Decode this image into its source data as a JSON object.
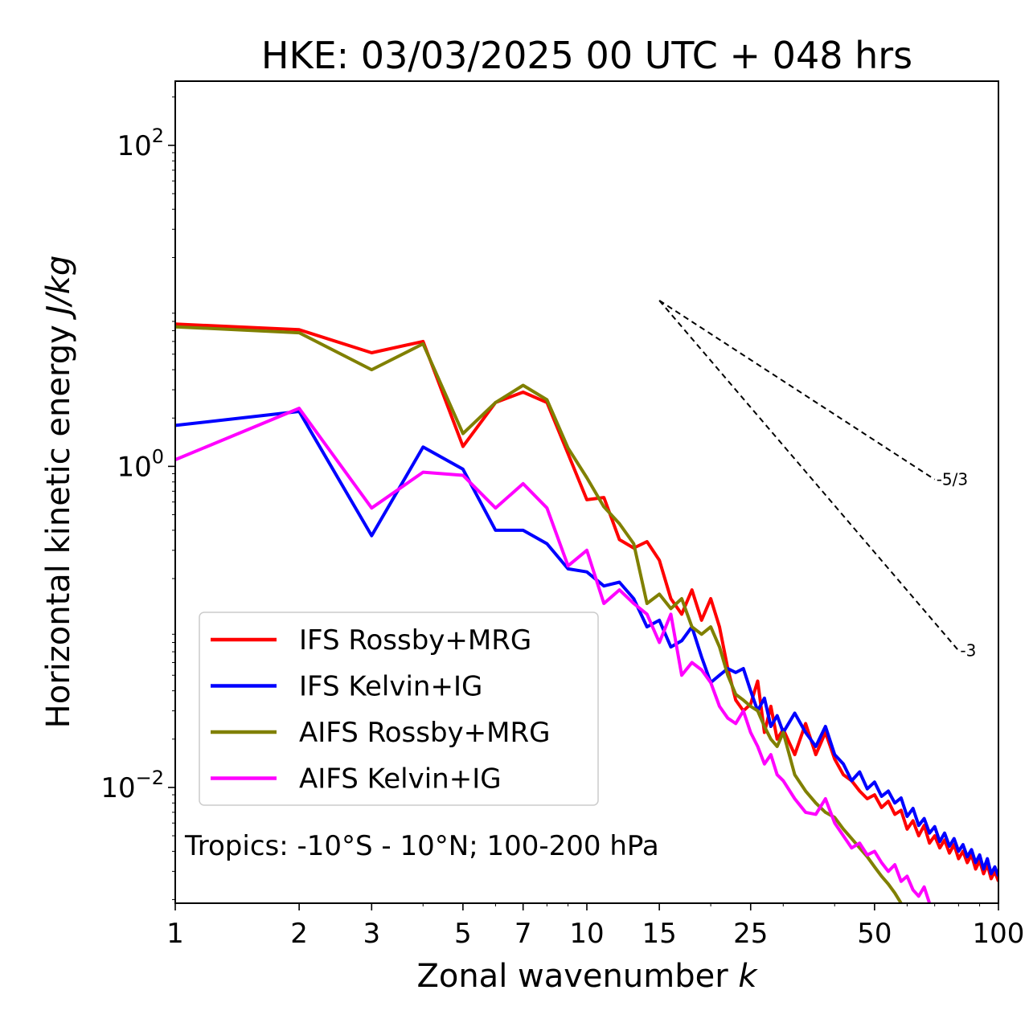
{
  "chart_data": {
    "type": "line",
    "title": "HKE: 03/03/2025 00 UTC + 048 hrs",
    "xlabel": "Zonal wavenumber",
    "xlabel_var": "k",
    "ylabel": "Horizontal kinetic energy",
    "ylabel_unit": "J/kg",
    "xscale": "log",
    "yscale": "log",
    "xlim": [
      1,
      100
    ],
    "ylim": [
      0.0019,
      251
    ],
    "x_ticks": [
      1,
      2,
      3,
      5,
      7,
      10,
      15,
      25,
      50,
      100
    ],
    "x_tick_labels": [
      "1",
      "2",
      "3",
      "5",
      "7",
      "10",
      "15",
      "25",
      "50",
      "100"
    ],
    "y_ticks": [
      0.01,
      1,
      100
    ],
    "y_tick_labels": [
      {
        "base": "10",
        "exp": "−2"
      },
      {
        "base": "10",
        "exp": "0"
      },
      {
        "base": "10",
        "exp": "2"
      }
    ],
    "legend_position": "lower-left",
    "annotation": "Tropics: -10°S - 10°N; 100-200 hPa",
    "reference_lines": [
      {
        "label": "-5/3",
        "slope": -1.6667,
        "x_start": 15,
        "y_start": 10.8,
        "x_end": 70
      },
      {
        "label": "-3",
        "slope": -3,
        "x_start": 15,
        "y_start": 10.8,
        "x_end": 80
      }
    ],
    "series": [
      {
        "name": "IFS Rossby+MRG",
        "color": "#ff0000",
        "values": [
          [
            1,
            7.7
          ],
          [
            2,
            7.1
          ],
          [
            3,
            5.1
          ],
          [
            4,
            6.0
          ],
          [
            5,
            1.33
          ],
          [
            6,
            2.5
          ],
          [
            7,
            2.9
          ],
          [
            8,
            2.5
          ],
          [
            9,
            1.2
          ],
          [
            10,
            0.62
          ],
          [
            11,
            0.64
          ],
          [
            12,
            0.35
          ],
          [
            13,
            0.31
          ],
          [
            14,
            0.34
          ],
          [
            15,
            0.26
          ],
          [
            16,
            0.15
          ],
          [
            17,
            0.12
          ],
          [
            18,
            0.17
          ],
          [
            19,
            0.11
          ],
          [
            20,
            0.15
          ],
          [
            21,
            0.1
          ],
          [
            22,
            0.055
          ],
          [
            23,
            0.035
          ],
          [
            24,
            0.03
          ],
          [
            25,
            0.033
          ],
          [
            26,
            0.046
          ],
          [
            27,
            0.022
          ],
          [
            28,
            0.032
          ],
          [
            29,
            0.02
          ],
          [
            30,
            0.023
          ],
          [
            32,
            0.016
          ],
          [
            34,
            0.025
          ],
          [
            36,
            0.016
          ],
          [
            38,
            0.022
          ],
          [
            40,
            0.015
          ],
          [
            42,
            0.012
          ],
          [
            44,
            0.011
          ],
          [
            46,
            0.0095
          ],
          [
            48,
            0.0085
          ],
          [
            50,
            0.009
          ],
          [
            52,
            0.0075
          ],
          [
            54,
            0.0082
          ],
          [
            56,
            0.0068
          ],
          [
            58,
            0.0072
          ],
          [
            60,
            0.0055
          ],
          [
            62,
            0.0062
          ],
          [
            64,
            0.005
          ],
          [
            66,
            0.0058
          ],
          [
            68,
            0.0045
          ],
          [
            70,
            0.005
          ],
          [
            72,
            0.0042
          ],
          [
            74,
            0.0047
          ],
          [
            76,
            0.0039
          ],
          [
            78,
            0.0044
          ],
          [
            80,
            0.0036
          ],
          [
            82,
            0.004
          ],
          [
            84,
            0.0034
          ],
          [
            86,
            0.0038
          ],
          [
            88,
            0.0031
          ],
          [
            90,
            0.0035
          ],
          [
            92,
            0.0029
          ],
          [
            94,
            0.0033
          ],
          [
            96,
            0.0027
          ],
          [
            98,
            0.003
          ],
          [
            100,
            0.0026
          ]
        ]
      },
      {
        "name": "IFS Kelvin+IG",
        "color": "#0000ff",
        "values": [
          [
            1,
            1.8
          ],
          [
            2,
            2.2
          ],
          [
            3,
            0.37
          ],
          [
            4,
            1.32
          ],
          [
            5,
            0.96
          ],
          [
            6,
            0.4
          ],
          [
            7,
            0.4
          ],
          [
            8,
            0.33
          ],
          [
            9,
            0.23
          ],
          [
            10,
            0.22
          ],
          [
            11,
            0.18
          ],
          [
            12,
            0.19
          ],
          [
            13,
            0.15
          ],
          [
            14,
            0.1
          ],
          [
            15,
            0.11
          ],
          [
            16,
            0.075
          ],
          [
            17,
            0.082
          ],
          [
            18,
            0.1
          ],
          [
            19,
            0.065
          ],
          [
            20,
            0.045
          ],
          [
            21,
            0.05
          ],
          [
            22,
            0.055
          ],
          [
            23,
            0.052
          ],
          [
            24,
            0.055
          ],
          [
            25,
            0.04
          ],
          [
            26,
            0.03
          ],
          [
            27,
            0.036
          ],
          [
            28,
            0.024
          ],
          [
            29,
            0.028
          ],
          [
            30,
            0.022
          ],
          [
            32,
            0.029
          ],
          [
            34,
            0.022
          ],
          [
            36,
            0.018
          ],
          [
            38,
            0.024
          ],
          [
            40,
            0.016
          ],
          [
            42,
            0.014
          ],
          [
            44,
            0.011
          ],
          [
            46,
            0.0125
          ],
          [
            48,
            0.0098
          ],
          [
            50,
            0.0108
          ],
          [
            52,
            0.0088
          ],
          [
            54,
            0.0095
          ],
          [
            56,
            0.008
          ],
          [
            58,
            0.0086
          ],
          [
            60,
            0.0066
          ],
          [
            62,
            0.0074
          ],
          [
            64,
            0.0058
          ],
          [
            66,
            0.0064
          ],
          [
            68,
            0.0052
          ],
          [
            70,
            0.0057
          ],
          [
            72,
            0.0046
          ],
          [
            74,
            0.0052
          ],
          [
            76,
            0.0043
          ],
          [
            78,
            0.0048
          ],
          [
            80,
            0.004
          ],
          [
            82,
            0.0044
          ],
          [
            84,
            0.0037
          ],
          [
            86,
            0.0041
          ],
          [
            88,
            0.0034
          ],
          [
            90,
            0.0038
          ],
          [
            92,
            0.0031
          ],
          [
            94,
            0.0036
          ],
          [
            96,
            0.0029
          ],
          [
            98,
            0.0032
          ],
          [
            100,
            0.0028
          ]
        ]
      },
      {
        "name": "AIFS Rossby+MRG",
        "color": "#808000",
        "values": [
          [
            1,
            7.4
          ],
          [
            2,
            6.8
          ],
          [
            3,
            4.0
          ],
          [
            4,
            5.8
          ],
          [
            5,
            1.6
          ],
          [
            6,
            2.5
          ],
          [
            7,
            3.2
          ],
          [
            8,
            2.6
          ],
          [
            9,
            1.3
          ],
          [
            10,
            0.85
          ],
          [
            11,
            0.56
          ],
          [
            12,
            0.44
          ],
          [
            13,
            0.33
          ],
          [
            14,
            0.14
          ],
          [
            15,
            0.16
          ],
          [
            16,
            0.13
          ],
          [
            17,
            0.15
          ],
          [
            18,
            0.1
          ],
          [
            19,
            0.09
          ],
          [
            20,
            0.1
          ],
          [
            21,
            0.075
          ],
          [
            22,
            0.05
          ],
          [
            23,
            0.038
          ],
          [
            24,
            0.035
          ],
          [
            25,
            0.032
          ],
          [
            26,
            0.03
          ],
          [
            27,
            0.024
          ],
          [
            28,
            0.02
          ],
          [
            29,
            0.018
          ],
          [
            30,
            0.022
          ],
          [
            32,
            0.012
          ],
          [
            34,
            0.0095
          ],
          [
            36,
            0.008
          ],
          [
            38,
            0.007
          ],
          [
            40,
            0.0065
          ],
          [
            42,
            0.0055
          ],
          [
            44,
            0.0048
          ],
          [
            46,
            0.0042
          ],
          [
            48,
            0.0037
          ],
          [
            50,
            0.0032
          ],
          [
            52,
            0.0028
          ],
          [
            54,
            0.0025
          ],
          [
            56,
            0.0022
          ],
          [
            58,
            0.0019
          ]
        ]
      },
      {
        "name": "AIFS Kelvin+IG",
        "color": "#ff00ff",
        "values": [
          [
            1,
            1.1
          ],
          [
            2,
            2.3
          ],
          [
            3,
            0.55
          ],
          [
            4,
            0.92
          ],
          [
            5,
            0.88
          ],
          [
            6,
            0.55
          ],
          [
            7,
            0.78
          ],
          [
            8,
            0.55
          ],
          [
            9,
            0.24
          ],
          [
            10,
            0.3
          ],
          [
            11,
            0.14
          ],
          [
            12,
            0.17
          ],
          [
            13,
            0.14
          ],
          [
            14,
            0.12
          ],
          [
            15,
            0.08
          ],
          [
            16,
            0.12
          ],
          [
            17,
            0.05
          ],
          [
            18,
            0.06
          ],
          [
            19,
            0.054
          ],
          [
            20,
            0.045
          ],
          [
            21,
            0.032
          ],
          [
            22,
            0.027
          ],
          [
            23,
            0.025
          ],
          [
            24,
            0.03
          ],
          [
            25,
            0.022
          ],
          [
            26,
            0.018
          ],
          [
            27,
            0.014
          ],
          [
            28,
            0.016
          ],
          [
            29,
            0.012
          ],
          [
            30,
            0.011
          ],
          [
            32,
            0.0085
          ],
          [
            34,
            0.007
          ],
          [
            36,
            0.0068
          ],
          [
            38,
            0.0085
          ],
          [
            40,
            0.006
          ],
          [
            42,
            0.005
          ],
          [
            44,
            0.0042
          ],
          [
            46,
            0.0045
          ],
          [
            48,
            0.0038
          ],
          [
            50,
            0.004
          ],
          [
            52,
            0.0034
          ],
          [
            54,
            0.003
          ],
          [
            56,
            0.0033
          ],
          [
            58,
            0.0026
          ],
          [
            60,
            0.0028
          ],
          [
            62,
            0.0023
          ],
          [
            64,
            0.0021
          ],
          [
            66,
            0.0024
          ],
          [
            68,
            0.0019
          ]
        ]
      }
    ]
  }
}
